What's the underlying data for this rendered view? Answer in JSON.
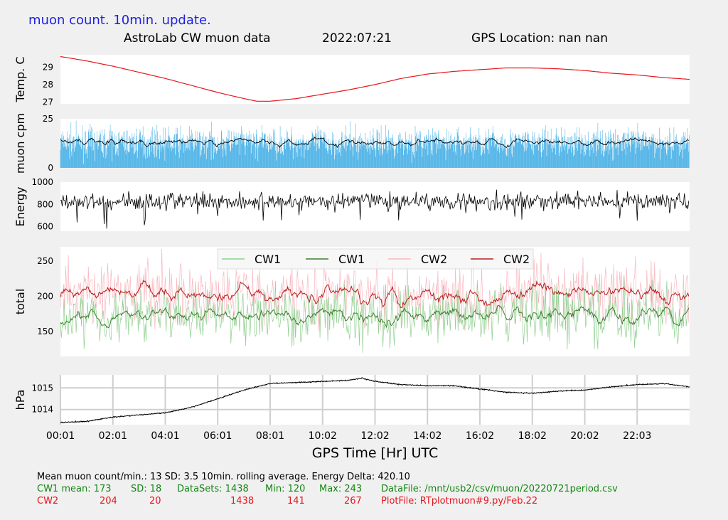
{
  "header": {
    "note": "muon count.  10min. update.",
    "title": "AstroLab CW muon data",
    "date": "2022:07:21",
    "gps_location": "GPS Location: nan   nan"
  },
  "chart_data": [
    {
      "type": "line",
      "name": "temperature",
      "ylabel": "Temp. C",
      "yticks": [
        "29",
        "28",
        "27"
      ],
      "ylim": [
        26.9,
        29.7
      ],
      "grid": false,
      "points": [
        [
          0,
          29.6
        ],
        [
          1,
          29.35
        ],
        [
          2,
          29.05
        ],
        [
          3,
          28.7
        ],
        [
          4,
          28.35
        ],
        [
          5,
          27.95
        ],
        [
          6,
          27.55
        ],
        [
          7,
          27.2
        ],
        [
          7.5,
          27.05
        ],
        [
          8,
          27.05
        ],
        [
          9,
          27.2
        ],
        [
          10,
          27.45
        ],
        [
          11,
          27.7
        ],
        [
          12,
          28.0
        ],
        [
          13,
          28.35
        ],
        [
          14,
          28.6
        ],
        [
          15,
          28.75
        ],
        [
          16,
          28.85
        ],
        [
          17,
          28.95
        ],
        [
          18,
          28.95
        ],
        [
          19,
          28.9
        ],
        [
          20,
          28.8
        ],
        [
          21,
          28.65
        ],
        [
          22,
          28.55
        ],
        [
          23,
          28.4
        ],
        [
          24,
          28.3
        ]
      ],
      "color": "#e6161d"
    },
    {
      "type": "bar+line",
      "name": "muon-cpm",
      "ylabel": "muon cpm",
      "yticks": [
        "25",
        "0"
      ],
      "ylim": [
        0,
        25
      ],
      "grid": false,
      "bar_color": "#5ab8e8",
      "mean": 13,
      "sd": 3.5,
      "avg_color": "#000000"
    },
    {
      "type": "line",
      "name": "energy",
      "ylabel": "Energy",
      "yticks": [
        "1000",
        "800",
        "600"
      ],
      "ylim": [
        560,
        1000
      ],
      "grid": false,
      "mean": 830,
      "color": "#000000"
    },
    {
      "type": "line",
      "name": "total",
      "ylabel": "total",
      "yticks": [
        "250",
        "200",
        "150"
      ],
      "ylim": [
        115,
        270
      ],
      "grid": false,
      "legend": {
        "placement": "top-center",
        "entries": [
          {
            "label": "CW1",
            "color": "#8fcf8f"
          },
          {
            "label": "CW1",
            "color": "#3e7d2e"
          },
          {
            "label": "CW2",
            "color": "#f8b8c0"
          },
          {
            "label": "CW2",
            "color": "#b81e1e"
          }
        ]
      },
      "cw1": {
        "mean": 173,
        "sd": 18,
        "min": 120,
        "max": 243
      },
      "cw2": {
        "mean": 204,
        "sd": 20,
        "min": 141,
        "max": 267
      }
    },
    {
      "type": "line",
      "name": "pressure",
      "ylabel": "hPa",
      "yticks": [
        "1015",
        "1014"
      ],
      "ylim": [
        1013.3,
        1015.6
      ],
      "grid": true,
      "color": "#000000",
      "points": [
        [
          0,
          1013.4
        ],
        [
          1,
          1013.45
        ],
        [
          2,
          1013.65
        ],
        [
          3,
          1013.75
        ],
        [
          4,
          1013.85
        ],
        [
          5,
          1014.1
        ],
        [
          6,
          1014.5
        ],
        [
          7,
          1014.9
        ],
        [
          8,
          1015.2
        ],
        [
          9,
          1015.25
        ],
        [
          10,
          1015.3
        ],
        [
          11,
          1015.35
        ],
        [
          11.5,
          1015.45
        ],
        [
          12,
          1015.3
        ],
        [
          13,
          1015.15
        ],
        [
          14,
          1015.1
        ],
        [
          15,
          1015.1
        ],
        [
          16,
          1014.95
        ],
        [
          17,
          1014.8
        ],
        [
          18,
          1014.75
        ],
        [
          19,
          1014.85
        ],
        [
          20,
          1014.9
        ],
        [
          21,
          1015.05
        ],
        [
          22,
          1015.15
        ],
        [
          23,
          1015.2
        ],
        [
          24,
          1015.05
        ]
      ],
      "xticks": [
        "00:01",
        "02:01",
        "04:01",
        "06:01",
        "08:01",
        "10:02",
        "12:02",
        "14:02",
        "16:02",
        "18:02",
        "20:02",
        "22:03"
      ],
      "xtick_hours": [
        0,
        2,
        4,
        6,
        8,
        10,
        12,
        14,
        16,
        18,
        20,
        22
      ],
      "xlim": [
        0,
        24
      ],
      "xlabel": "GPS Time  [Hr] UTC"
    }
  ],
  "footer": {
    "line1": "Mean muon count/min.: 13  SD: 3.5   10min. rolling average.    Energy Delta:  420.10",
    "cw1_label": "CW1 mean: 173",
    "cw1_sd": "SD: 18",
    "cw1_datasets": "DataSets: 1438",
    "cw1_min": "Min: 120",
    "cw1_max": "Max: 243",
    "cw1_datafile": "DataFile: /mnt/usb2/csv/muon/20220721period.csv",
    "cw2_label": "CW2",
    "cw2_mean": "204",
    "cw2_sd": "20",
    "cw2_datasets": "1438",
    "cw2_min": "141",
    "cw2_max": "267",
    "cw2_plotfile": "PlotFile: RTplotmuon#9.py/Feb.22"
  }
}
